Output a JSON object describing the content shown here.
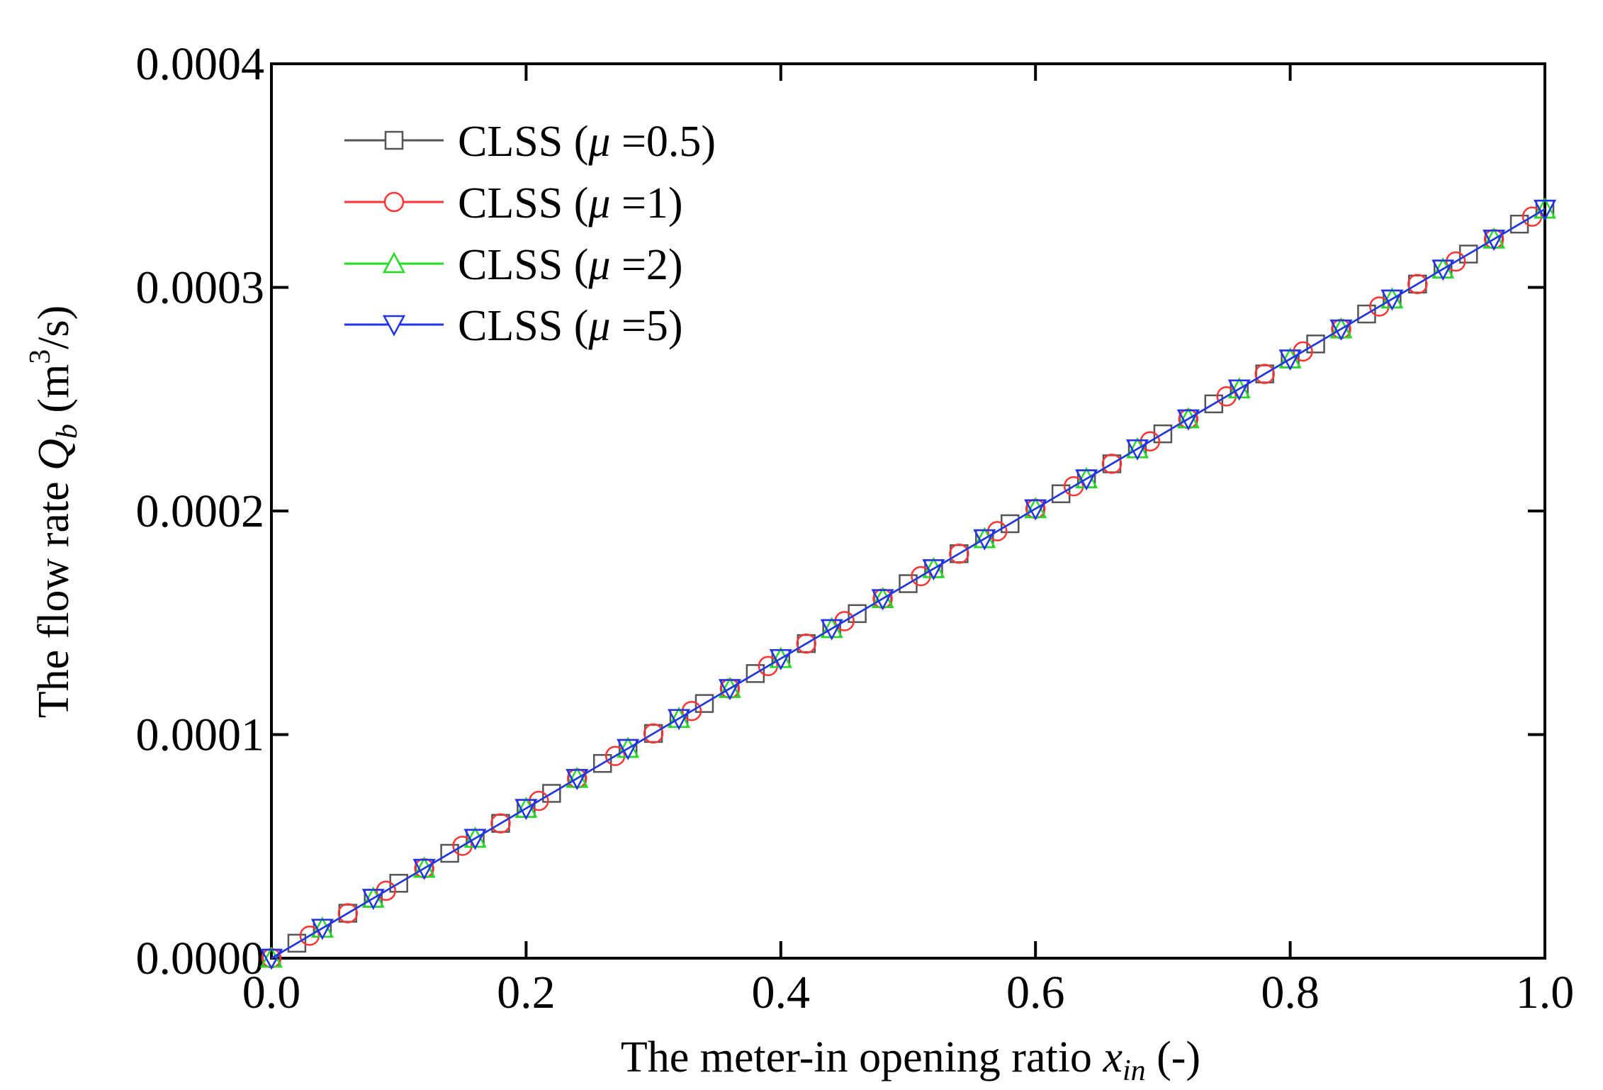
{
  "chart_data": {
    "type": "line",
    "title": "",
    "xlabel": {
      "prefix": "The meter-in opening ratio ",
      "var": "x",
      "sub": "in",
      "suffix": " (-)"
    },
    "ylabel": {
      "prefix": "The flow rate ",
      "var": "Q",
      "sub": "b",
      "unit_open": " (m",
      "unit_sup": "3",
      "unit_close": "/s)"
    },
    "xlim": [
      0,
      1
    ],
    "ylim": [
      0,
      0.0004
    ],
    "xticks": [
      0.0,
      0.2,
      0.4,
      0.6,
      0.8,
      1.0
    ],
    "xtick_labels": [
      "0.0",
      "0.2",
      "0.4",
      "0.6",
      "0.8",
      "1.0"
    ],
    "yticks": [
      0,
      0.0001,
      0.0002,
      0.0003,
      0.0004
    ],
    "ytick_labels": [
      "0.0000",
      "0.0001",
      "0.0002",
      "0.0003",
      "0.0004"
    ],
    "grid": false,
    "legend_position": "top-left",
    "series": [
      {
        "name": "CLSS (μ =0.5)",
        "label_prefix": "CLSS (",
        "label_mu": "μ",
        "label_suffix": " =0.5)",
        "color": "#555555",
        "marker": "square",
        "x": [
          0.0,
          0.02,
          0.04,
          0.06,
          0.08,
          0.1,
          0.12,
          0.14,
          0.16,
          0.18,
          0.2,
          0.22,
          0.24,
          0.26,
          0.28,
          0.3,
          0.32,
          0.34,
          0.36,
          0.38,
          0.4,
          0.42,
          0.44,
          0.46,
          0.48,
          0.5,
          0.52,
          0.54,
          0.56,
          0.58,
          0.6,
          0.62,
          0.64,
          0.66,
          0.68,
          0.7,
          0.72,
          0.74,
          0.76,
          0.78,
          0.8,
          0.82,
          0.84,
          0.86,
          0.88,
          0.9,
          0.92,
          0.94,
          0.96,
          0.98,
          1.0
        ],
        "y": [
          0.0,
          6.7e-06,
          1.34e-05,
          2.01e-05,
          2.68e-05,
          3.35e-05,
          4.02e-05,
          4.69e-05,
          5.36e-05,
          6.03e-05,
          6.7e-05,
          7.37e-05,
          8.04e-05,
          8.71e-05,
          9.38e-05,
          0.0001005,
          0.0001072,
          0.0001139,
          0.0001206,
          0.0001273,
          0.000134,
          0.0001407,
          0.0001474,
          0.0001541,
          0.0001608,
          0.0001675,
          0.0001742,
          0.0001809,
          0.0001876,
          0.0001943,
          0.000201,
          0.0002077,
          0.0002144,
          0.0002211,
          0.0002278,
          0.0002345,
          0.0002412,
          0.0002479,
          0.0002546,
          0.0002613,
          0.000268,
          0.0002747,
          0.0002814,
          0.0002881,
          0.0002948,
          0.0003015,
          0.0003082,
          0.0003149,
          0.0003216,
          0.0003283,
          0.000335
        ]
      },
      {
        "name": "CLSS (μ =1)",
        "label_prefix": "CLSS (",
        "label_mu": "μ",
        "label_suffix": " =1)",
        "color": "#ff3333",
        "marker": "circle",
        "x": [
          0.0,
          0.03,
          0.06,
          0.09,
          0.12,
          0.15,
          0.18,
          0.21,
          0.24,
          0.27,
          0.3,
          0.33,
          0.36,
          0.39,
          0.42,
          0.45,
          0.48,
          0.51,
          0.54,
          0.57,
          0.6,
          0.63,
          0.66,
          0.69,
          0.72,
          0.75,
          0.78,
          0.81,
          0.84,
          0.87,
          0.9,
          0.93,
          0.96,
          0.99
        ],
        "y": [
          0.0,
          1.005e-05,
          2.01e-05,
          3.015e-05,
          4.02e-05,
          5.025e-05,
          6.03e-05,
          7.035e-05,
          8.04e-05,
          9.045e-05,
          0.0001005,
          0.00011055,
          0.0001206,
          0.00013065,
          0.0001407,
          0.00015075,
          0.0001608,
          0.00017085,
          0.0001809,
          0.00019095,
          0.000201,
          0.00021105,
          0.0002211,
          0.00023115,
          0.0002412,
          0.00025125,
          0.0002613,
          0.00027135,
          0.0002814,
          0.00029145,
          0.0003015,
          0.00031155,
          0.0003216,
          0.00033165
        ]
      },
      {
        "name": "CLSS (μ =2)",
        "label_prefix": "CLSS (",
        "label_mu": "μ",
        "label_suffix": " =2)",
        "color": "#22dd22",
        "marker": "triangle-up",
        "x": [
          0.0,
          0.04,
          0.08,
          0.12,
          0.16,
          0.2,
          0.24,
          0.28,
          0.32,
          0.36,
          0.4,
          0.44,
          0.48,
          0.52,
          0.56,
          0.6,
          0.64,
          0.68,
          0.72,
          0.76,
          0.8,
          0.84,
          0.88,
          0.92,
          0.96,
          1.0
        ],
        "y": [
          0.0,
          1.34e-05,
          2.68e-05,
          4.02e-05,
          5.36e-05,
          6.7e-05,
          8.04e-05,
          9.38e-05,
          0.0001072,
          0.0001206,
          0.000134,
          0.0001474,
          0.0001608,
          0.0001742,
          0.0001876,
          0.000201,
          0.0002144,
          0.0002278,
          0.0002412,
          0.0002546,
          0.000268,
          0.0002814,
          0.0002948,
          0.0003082,
          0.0003216,
          0.000335
        ]
      },
      {
        "name": "CLSS (μ =5)",
        "label_prefix": "CLSS (",
        "label_mu": "μ",
        "label_suffix": " =5)",
        "color": "#2233ee",
        "marker": "triangle-down",
        "x": [
          0.0,
          0.04,
          0.08,
          0.12,
          0.16,
          0.2,
          0.24,
          0.28,
          0.32,
          0.36,
          0.4,
          0.44,
          0.48,
          0.52,
          0.56,
          0.6,
          0.64,
          0.68,
          0.72,
          0.76,
          0.8,
          0.84,
          0.88,
          0.92,
          0.96,
          1.0
        ],
        "y": [
          0.0,
          1.34e-05,
          2.68e-05,
          4.02e-05,
          5.36e-05,
          6.7e-05,
          8.04e-05,
          9.38e-05,
          0.0001072,
          0.0001206,
          0.000134,
          0.0001474,
          0.0001608,
          0.0001742,
          0.0001876,
          0.000201,
          0.0002144,
          0.0002278,
          0.0002412,
          0.0002546,
          0.000268,
          0.0002814,
          0.0002948,
          0.0003082,
          0.0003216,
          0.000335
        ]
      }
    ]
  }
}
